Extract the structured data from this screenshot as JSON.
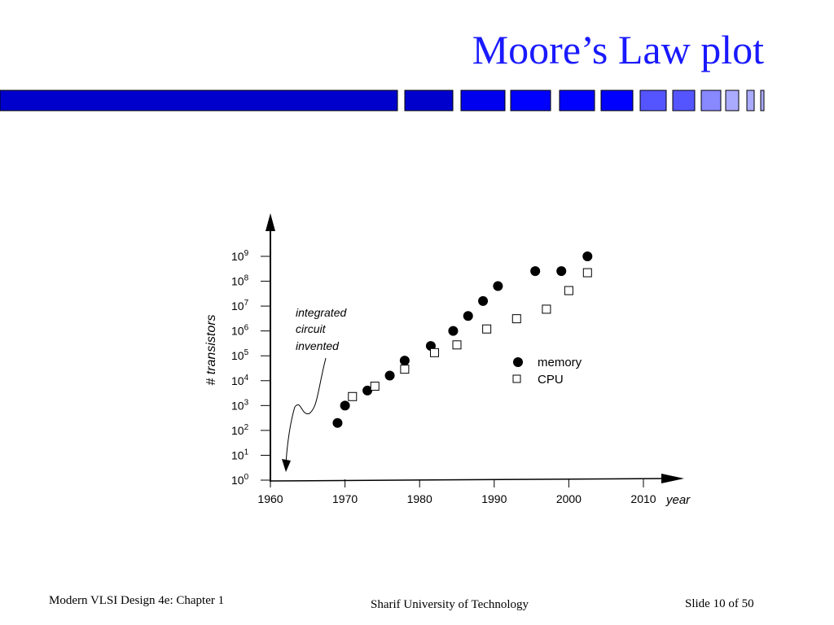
{
  "slide": {
    "title": "Moore’s Law plot",
    "title_color": "#1a1aff",
    "footer_left": "Modern VLSI Design 4e: Chapter 1",
    "footer_center": "Sharif University of  Technology",
    "footer_right": "Slide 10 of 50"
  },
  "decor": {
    "bar_colors": [
      "#0000cc",
      "#0000ee",
      "#0000ff",
      "#5555ff",
      "#8888ff",
      "#aaaaff"
    ]
  },
  "chart_data": {
    "type": "scatter",
    "title": "",
    "xlabel": "year",
    "ylabel": "# transistors",
    "y_scale": "log",
    "xlim": [
      1960,
      2010
    ],
    "ylim": [
      1,
      1000000000
    ],
    "x_ticks": [
      "1960",
      "1970",
      "1980",
      "1990",
      "2000",
      "2010"
    ],
    "y_ticks": [
      {
        "base": "10",
        "exp": "9"
      },
      {
        "base": "10",
        "exp": "8"
      },
      {
        "base": "10",
        "exp": "7"
      },
      {
        "base": "10",
        "exp": "6"
      },
      {
        "base": "10",
        "exp": "5"
      },
      {
        "base": "10",
        "exp": "4"
      },
      {
        "base": "10",
        "exp": "3"
      },
      {
        "base": "10",
        "exp": "2"
      },
      {
        "base": "10",
        "exp": "1"
      },
      {
        "base": "10",
        "exp": "0"
      }
    ],
    "legend_position": "center-right",
    "series": [
      {
        "name": "memory",
        "marker": "filled-circle",
        "points": [
          {
            "x": 1969,
            "y": 200
          },
          {
            "x": 1970,
            "y": 1000
          },
          {
            "x": 1973,
            "y": 4000
          },
          {
            "x": 1976,
            "y": 16000
          },
          {
            "x": 1978,
            "y": 64000
          },
          {
            "x": 1981.5,
            "y": 250000
          },
          {
            "x": 1984.5,
            "y": 1000000
          },
          {
            "x": 1986.5,
            "y": 4000000
          },
          {
            "x": 1988.5,
            "y": 16000000
          },
          {
            "x": 1990.5,
            "y": 64000000
          },
          {
            "x": 1995.5,
            "y": 256000000
          },
          {
            "x": 1999,
            "y": 256000000
          },
          {
            "x": 2002.5,
            "y": 1000000000
          }
        ]
      },
      {
        "name": "CPU",
        "marker": "open-square",
        "points": [
          {
            "x": 1971,
            "y": 2300
          },
          {
            "x": 1974,
            "y": 6000
          },
          {
            "x": 1978,
            "y": 29000
          },
          {
            "x": 1982,
            "y": 134000
          },
          {
            "x": 1985,
            "y": 275000
          },
          {
            "x": 1989,
            "y": 1200000
          },
          {
            "x": 1993,
            "y": 3100000
          },
          {
            "x": 1997,
            "y": 7500000
          },
          {
            "x": 2000,
            "y": 42000000
          },
          {
            "x": 2002.5,
            "y": 220000000
          }
        ]
      }
    ],
    "annotation": {
      "lines": [
        "integrated",
        "circuit",
        "invented"
      ]
    }
  }
}
